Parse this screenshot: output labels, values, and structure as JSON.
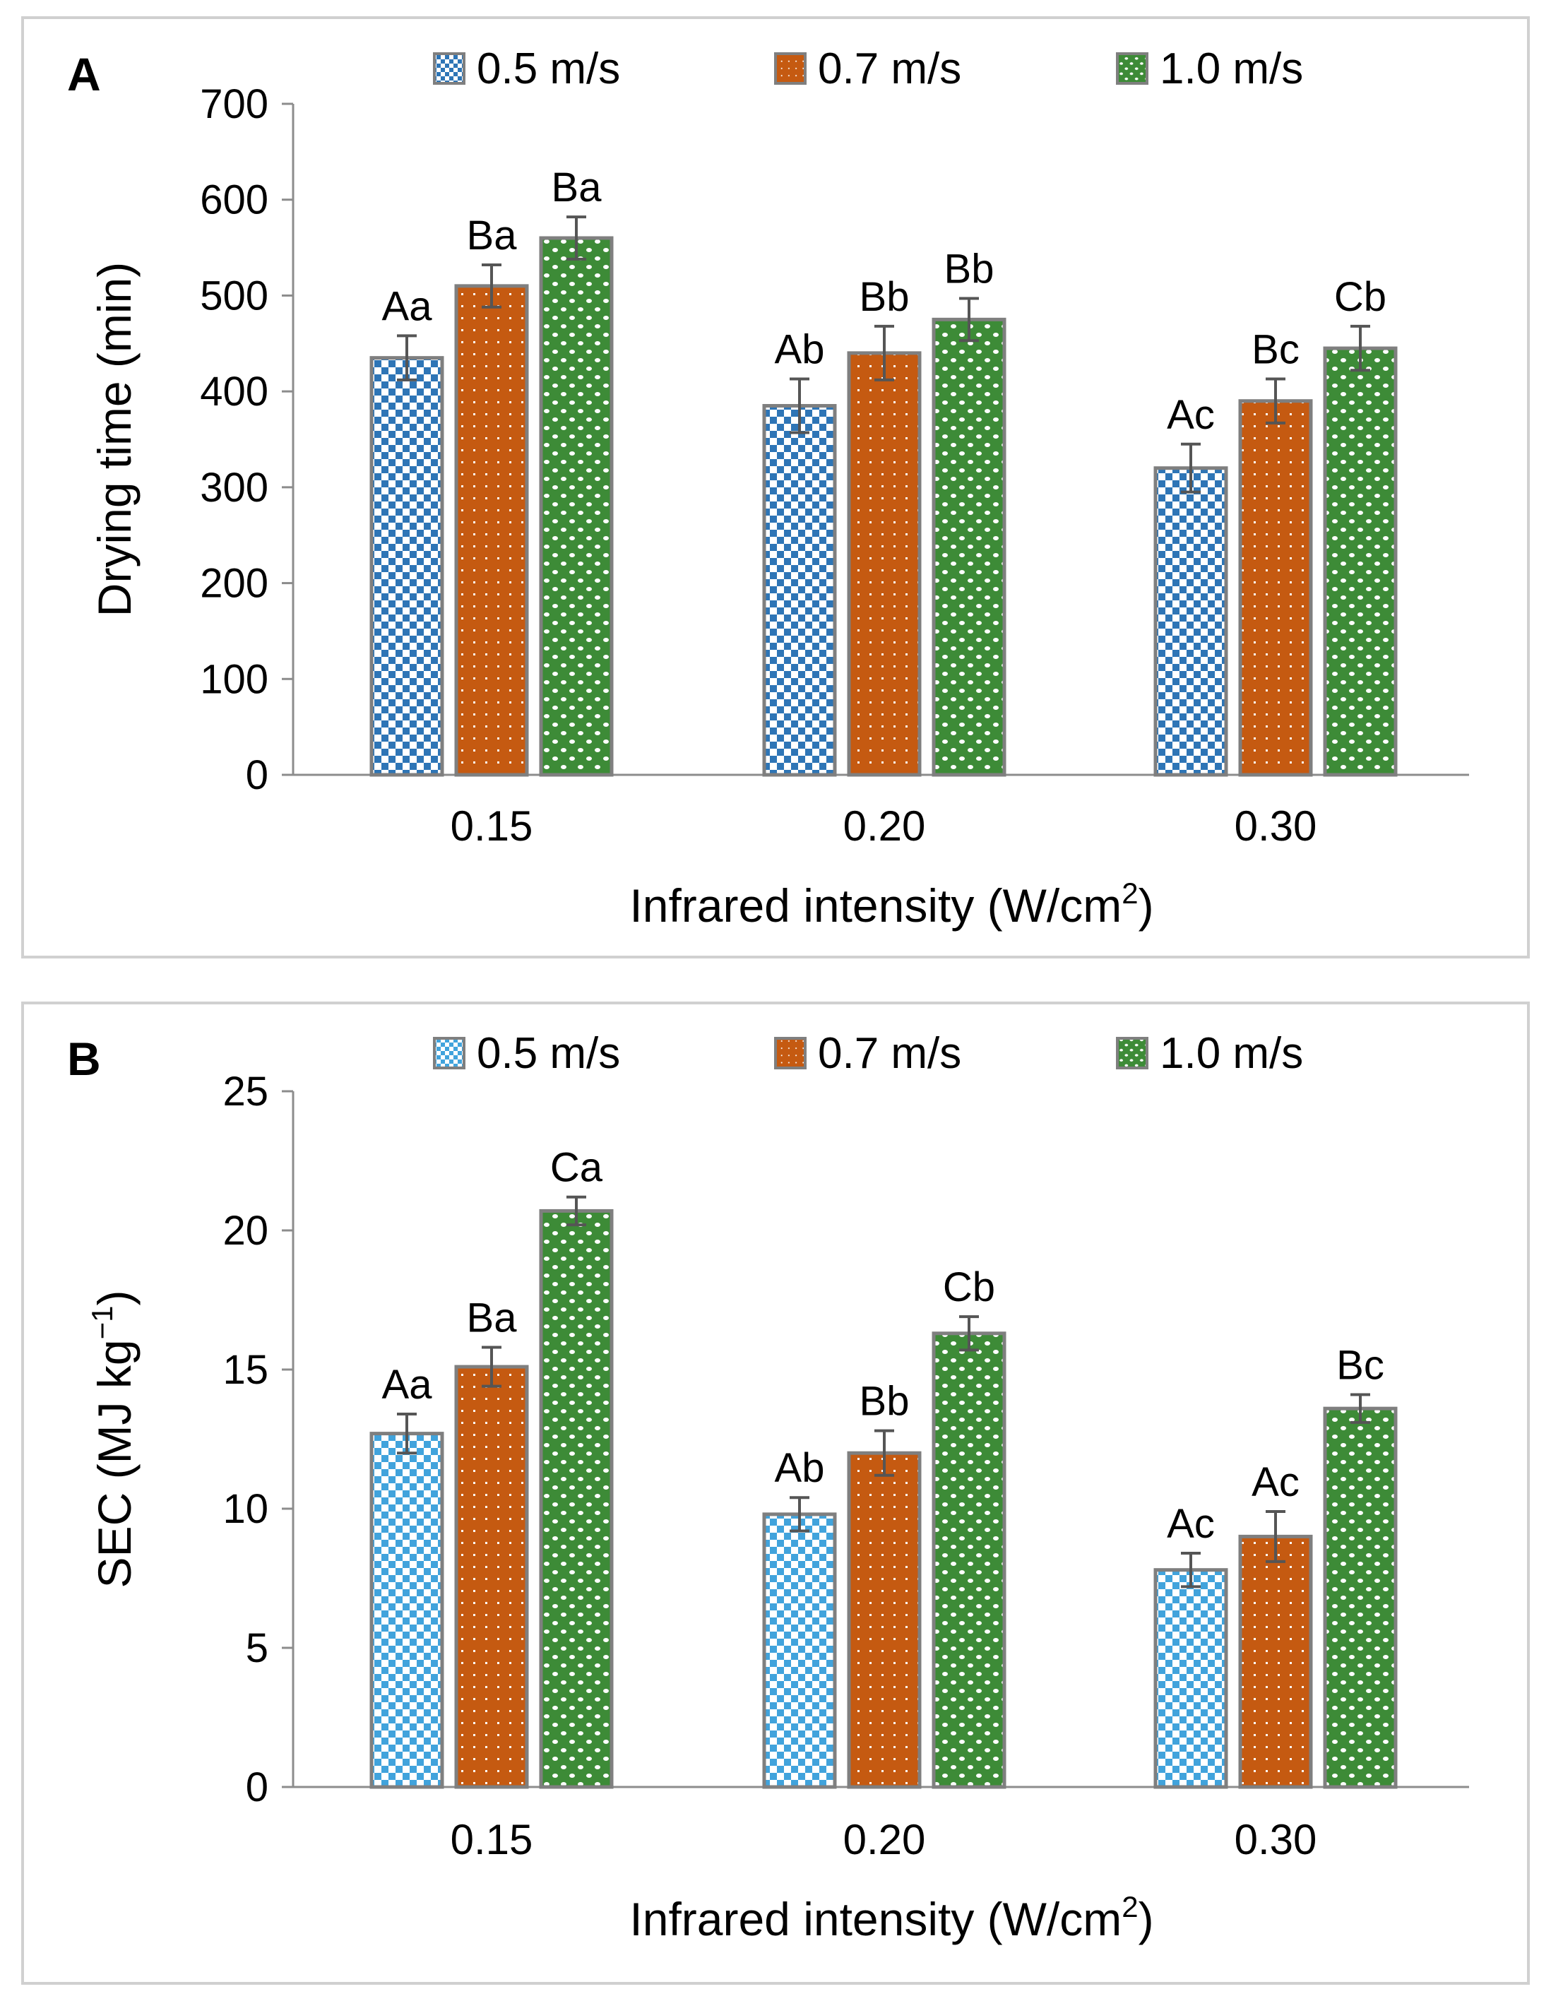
{
  "chart_data": [
    {
      "panel_label": "A",
      "type": "bar",
      "title": "",
      "xlabel": "Infrared intensity (W/cm",
      "xlabel_sup": "2",
      "xlabel_end": ")",
      "ylabel": "Drying time (min)",
      "categories": [
        "0.15",
        "0.20",
        "0.30"
      ],
      "ylim": [
        0,
        700
      ],
      "yticks": [
        0,
        100,
        200,
        300,
        400,
        500,
        600,
        700
      ],
      "ytick_labels": [
        "0",
        "100",
        "200",
        "300",
        "400",
        "500",
        "600",
        "700"
      ],
      "legend_position": "top",
      "grid": false,
      "series": [
        {
          "name": "0.5 m/s",
          "values": [
            435,
            385,
            320
          ],
          "errors": [
            23,
            28,
            25
          ],
          "labels": [
            "Aa",
            "Ab",
            "Ac"
          ],
          "color": "#2e75b6",
          "pattern": "checker"
        },
        {
          "name": "0.7 m/s",
          "values": [
            510,
            440,
            390
          ],
          "errors": [
            22,
            28,
            23
          ],
          "labels": [
            "Ba",
            "Bb",
            "Bc"
          ],
          "color": "#c55a11",
          "pattern": "dots"
        },
        {
          "name": "1.0 m/s",
          "values": [
            560,
            475,
            445
          ],
          "errors": [
            22,
            22,
            23
          ],
          "labels": [
            "Ba",
            "Bb",
            "Cb"
          ],
          "color": "#3d8b37",
          "pattern": "wave"
        }
      ]
    },
    {
      "panel_label": "B",
      "type": "bar",
      "title": "",
      "xlabel": "Infrared intensity (W/cm",
      "xlabel_sup": "2",
      "xlabel_end": ")",
      "ylabel": "SEC (MJ kg",
      "ylabel_sup": "−1",
      "ylabel_end": ")",
      "categories": [
        "0.15",
        "0.20",
        "0.30"
      ],
      "ylim": [
        0,
        25
      ],
      "yticks": [
        0,
        5,
        10,
        15,
        20,
        25
      ],
      "ytick_labels": [
        "0",
        "5",
        "10",
        "15",
        "20",
        "25"
      ],
      "legend_position": "top",
      "grid": false,
      "series": [
        {
          "name": "0.5 m/s",
          "values": [
            12.7,
            9.8,
            7.8
          ],
          "errors": [
            0.7,
            0.6,
            0.6
          ],
          "labels": [
            "Aa",
            "Ab",
            "Ac"
          ],
          "color": "#41a3dc",
          "pattern": "checker"
        },
        {
          "name": "0.7 m/s",
          "values": [
            15.1,
            12.0,
            9.0
          ],
          "errors": [
            0.7,
            0.8,
            0.9
          ],
          "labels": [
            "Ba",
            "Bb",
            "Ac"
          ],
          "color": "#c55a11",
          "pattern": "dots"
        },
        {
          "name": "1.0 m/s",
          "values": [
            20.7,
            16.3,
            13.6
          ],
          "errors": [
            0.5,
            0.6,
            0.5
          ],
          "labels": [
            "Ca",
            "Cb",
            "Bc"
          ],
          "color": "#3d8b37",
          "pattern": "wave"
        }
      ]
    }
  ]
}
